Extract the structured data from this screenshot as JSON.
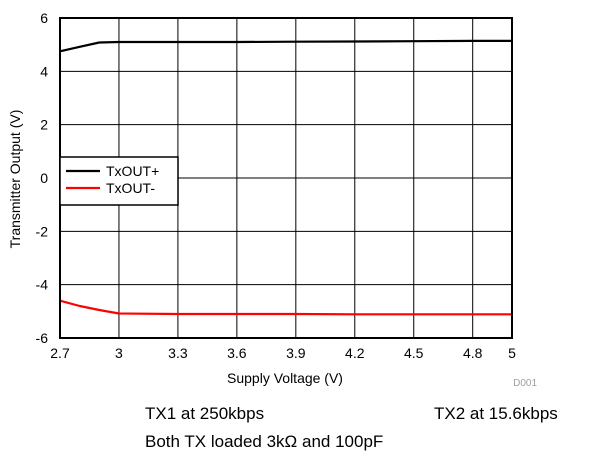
{
  "chart_data": {
    "type": "line",
    "xlabel": "Supply Voltage (V)",
    "ylabel": "Transmitter Output (V)",
    "xlim": [
      2.7,
      5
    ],
    "ylim": [
      -6,
      6
    ],
    "x_ticks": [
      "2.7",
      "3",
      "3.3",
      "3.6",
      "3.9",
      "4.2",
      "4.5",
      "4.8",
      "5"
    ],
    "x_tick_values": [
      2.7,
      3,
      3.3,
      3.6,
      3.9,
      4.2,
      4.5,
      4.8,
      5
    ],
    "y_ticks": [
      "6",
      "4",
      "2",
      "0",
      "-2",
      "-4",
      "-6"
    ],
    "y_tick_values": [
      6,
      4,
      2,
      0,
      -2,
      -4,
      -6
    ],
    "grid": true,
    "legend_position": "center-left",
    "series": [
      {
        "name": "TxOUT+",
        "color": "#000000",
        "x": [
          2.7,
          2.8,
          2.9,
          3.0,
          3.3,
          3.6,
          3.9,
          4.2,
          4.5,
          4.8,
          5.0
        ],
        "y": [
          4.75,
          4.92,
          5.08,
          5.1,
          5.1,
          5.1,
          5.11,
          5.12,
          5.13,
          5.14,
          5.14
        ]
      },
      {
        "name": "TxOUT-",
        "color": "#ff0000",
        "x": [
          2.7,
          2.8,
          2.9,
          3.0,
          3.3,
          3.6,
          3.9,
          4.2,
          4.5,
          4.8,
          5.0
        ],
        "y": [
          -4.6,
          -4.8,
          -4.95,
          -5.08,
          -5.1,
          -5.1,
          -5.1,
          -5.11,
          -5.11,
          -5.11,
          -5.11
        ]
      }
    ],
    "watermark": "D001"
  },
  "captions": {
    "left": "TX1 at 250kbps",
    "right": "TX2 at 15.6kbps",
    "bottom": "Both TX loaded 3kΩ and 100pF"
  }
}
